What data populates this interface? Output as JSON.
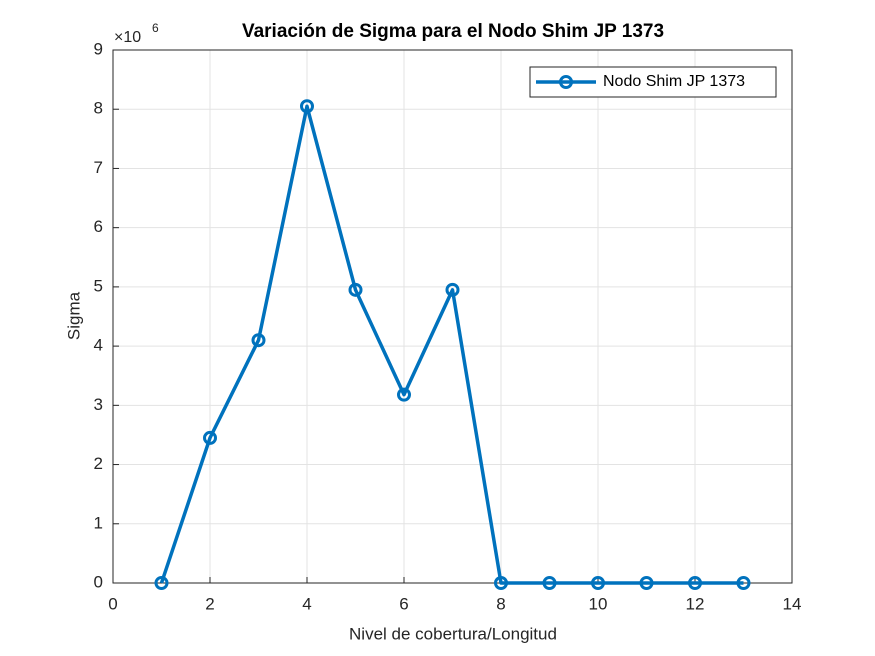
{
  "chart_data": {
    "type": "line",
    "title": "Variación de Sigma para el Nodo Shim JP 1373",
    "x_label": "Nivel de cobertura/Longitud",
    "y_label": "Sigma",
    "y_multiplier": {
      "base": "×10",
      "exponent": "6"
    },
    "x": [
      1,
      2,
      3,
      4,
      5,
      6,
      7,
      8,
      9,
      10,
      11,
      12,
      13
    ],
    "series": [
      {
        "name": "Nodo Shim JP 1373",
        "color": "#0072bd",
        "values": [
          0,
          2.45,
          4.1,
          8.05,
          4.95,
          3.18,
          4.95,
          0,
          0,
          0,
          0,
          0,
          0
        ]
      }
    ],
    "xlim": [
      0,
      14
    ],
    "xticks": [
      0,
      2,
      4,
      6,
      8,
      10,
      12,
      14
    ],
    "ylim": [
      0,
      9
    ],
    "yticks": [
      0,
      1,
      2,
      3,
      4,
      5,
      6,
      7,
      8,
      9
    ],
    "grid": true,
    "legend_location": "northeast"
  }
}
